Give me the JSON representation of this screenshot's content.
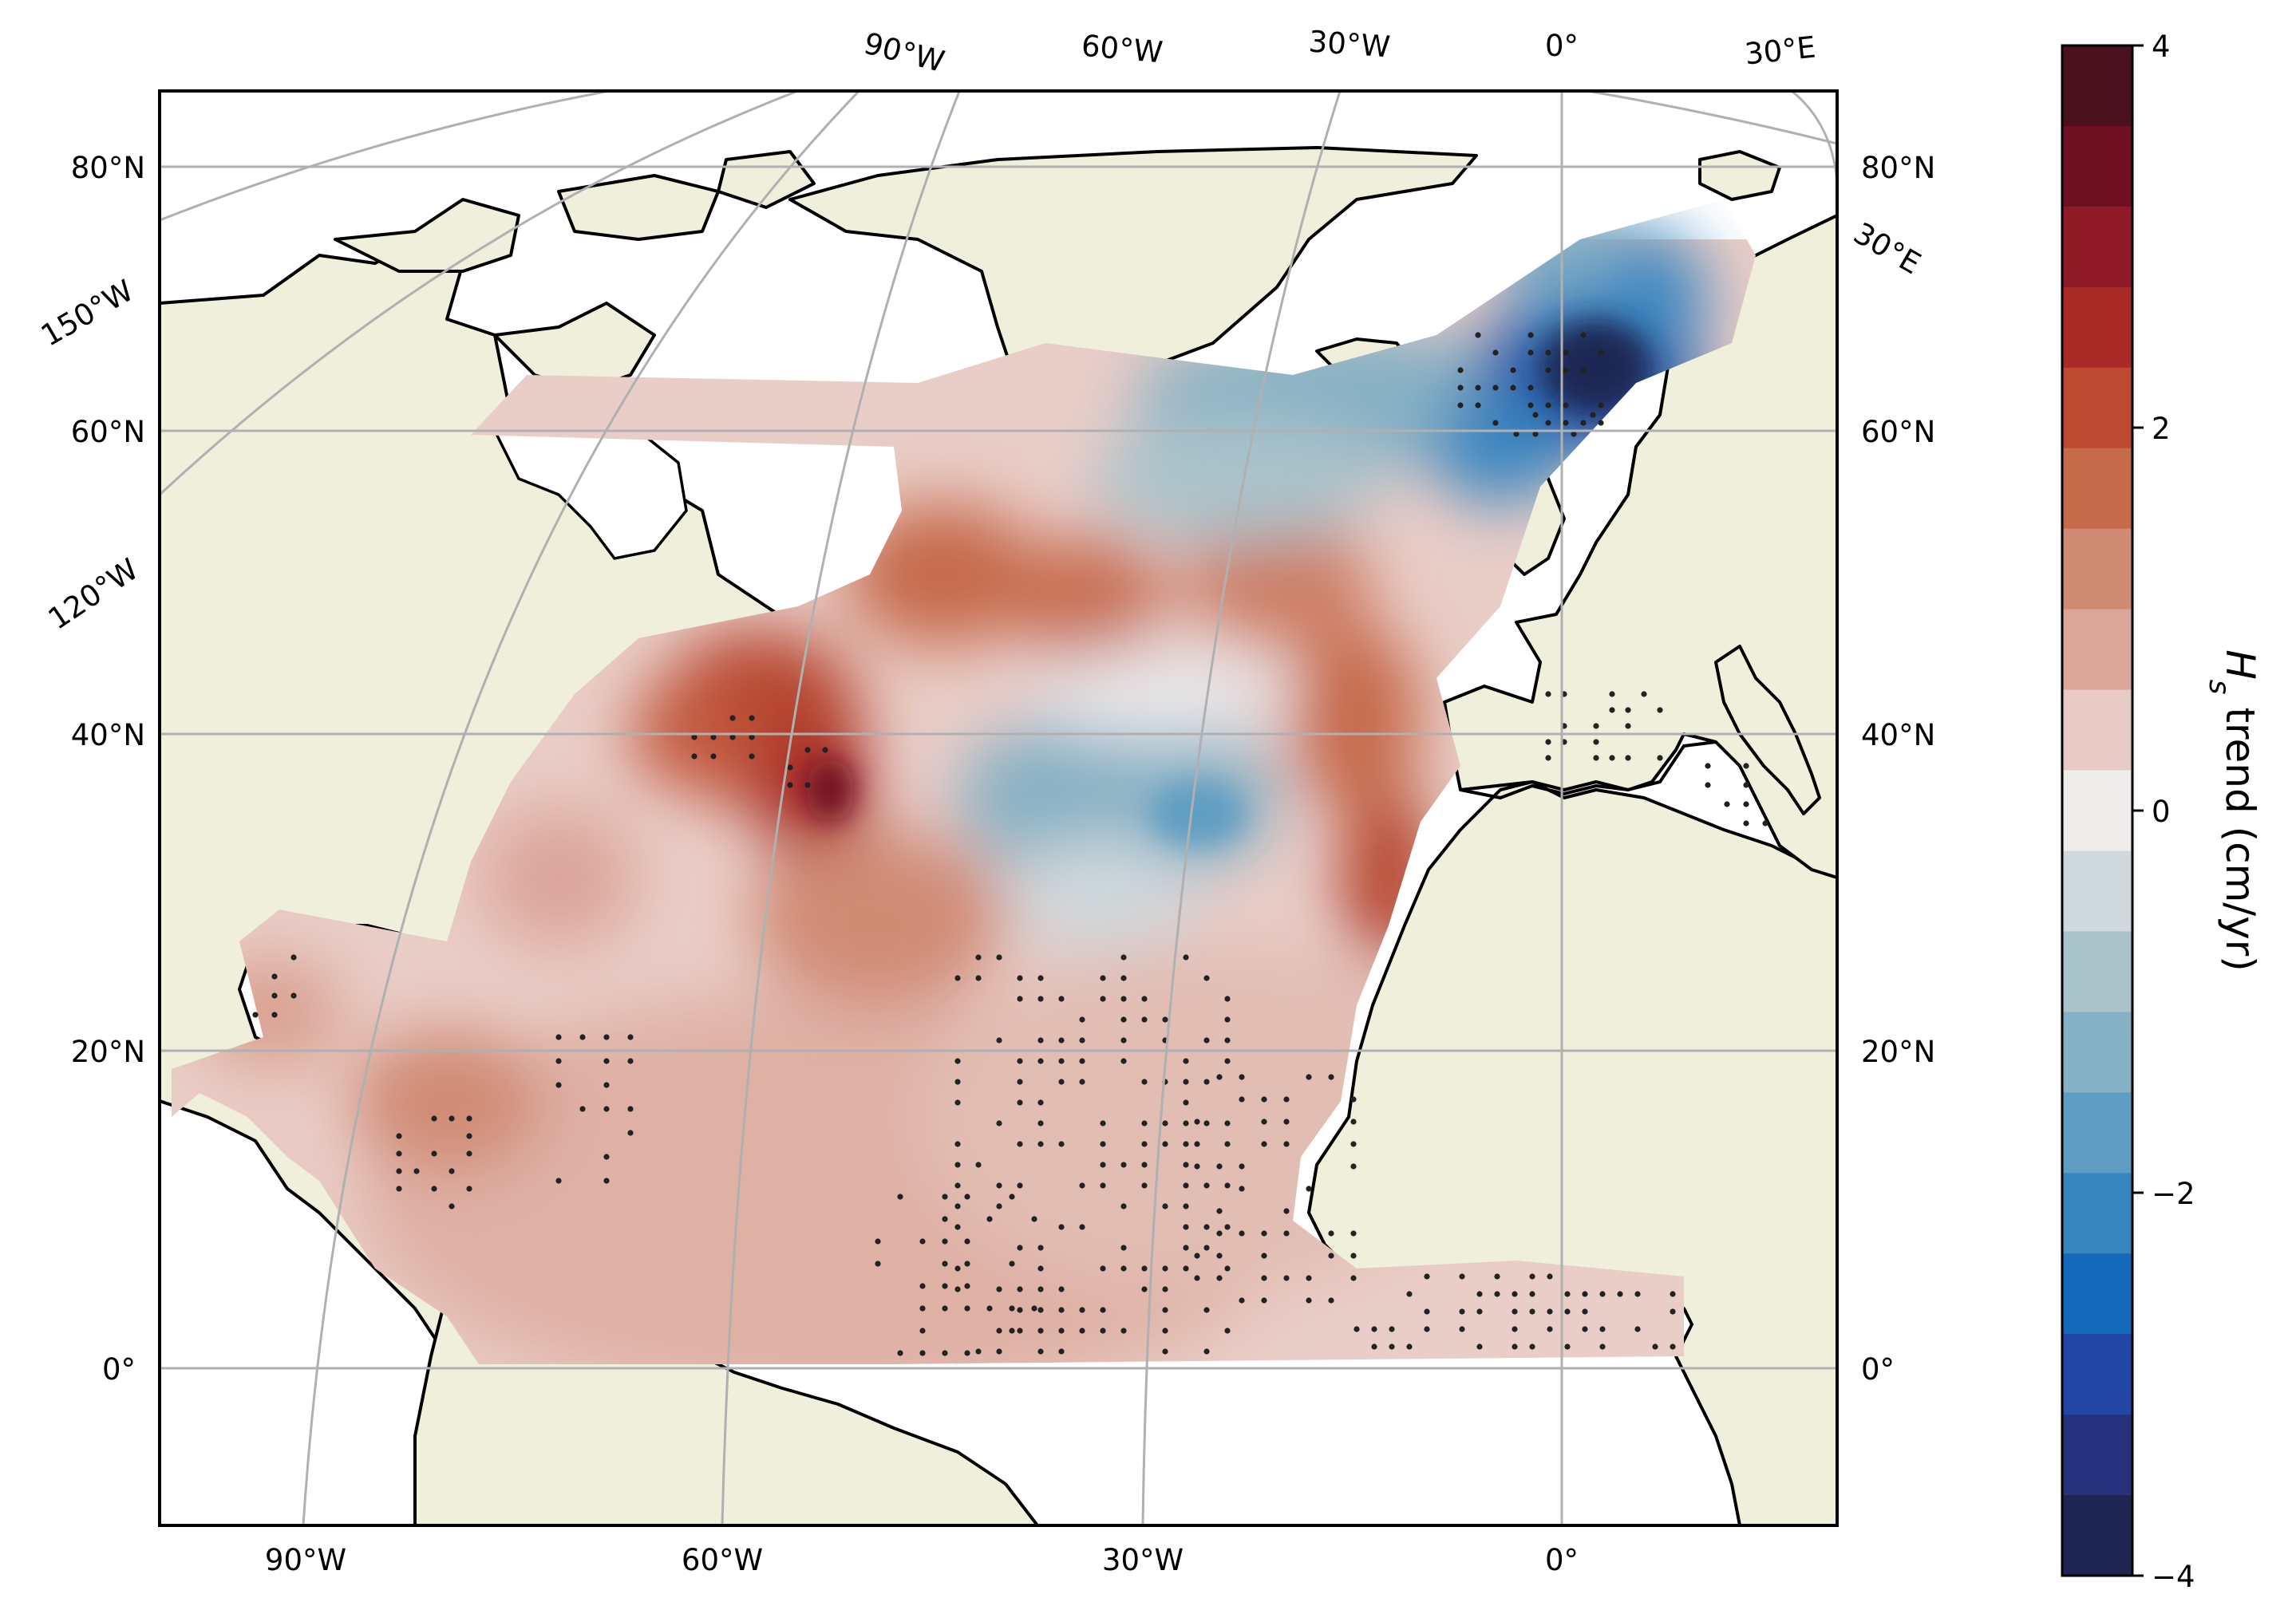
{
  "map": {
    "bottom_lon_labels": [
      "90°W",
      "60°W",
      "30°W",
      "0°"
    ],
    "top_lon_labels": [
      "90°W",
      "60°W",
      "30°W",
      "0°",
      "30°E"
    ],
    "left_lat_labels": [
      "80°N",
      "60°N",
      "40°N",
      "20°N",
      "0°"
    ],
    "right_lat_labels": [
      "80°N",
      "60°N",
      "40°N",
      "20°N",
      "0°"
    ],
    "left_lon_labels": [
      "150°W",
      "120°W"
    ],
    "right_lon_labels": [
      "30°E"
    ]
  },
  "colorbar": {
    "label_symbol": "H",
    "label_subscript": "s",
    "label_rest": " trend (cm/yr)",
    "ticks": [
      "4",
      "2",
      "0",
      "−2",
      "−4"
    ],
    "range": [
      -4,
      4
    ],
    "colors_top_to_bottom": [
      "#4a111e",
      "#6f0f22",
      "#8f1a27",
      "#a92a26",
      "#bc4a32",
      "#c66a4c",
      "#d08b74",
      "#dca69a",
      "#e8cbc6",
      "#f1ecec",
      "#cfd8dc",
      "#aac3cb",
      "#86b1c4",
      "#5f9dc2",
      "#3886c0",
      "#1569bb",
      "#2246a6",
      "#27307a",
      "#1f2552"
    ]
  },
  "colors": {
    "land": "#efefdb",
    "ocean_background": "#ffffff",
    "gridline": "#b0b0b0",
    "significance_dots": "#222222"
  }
}
